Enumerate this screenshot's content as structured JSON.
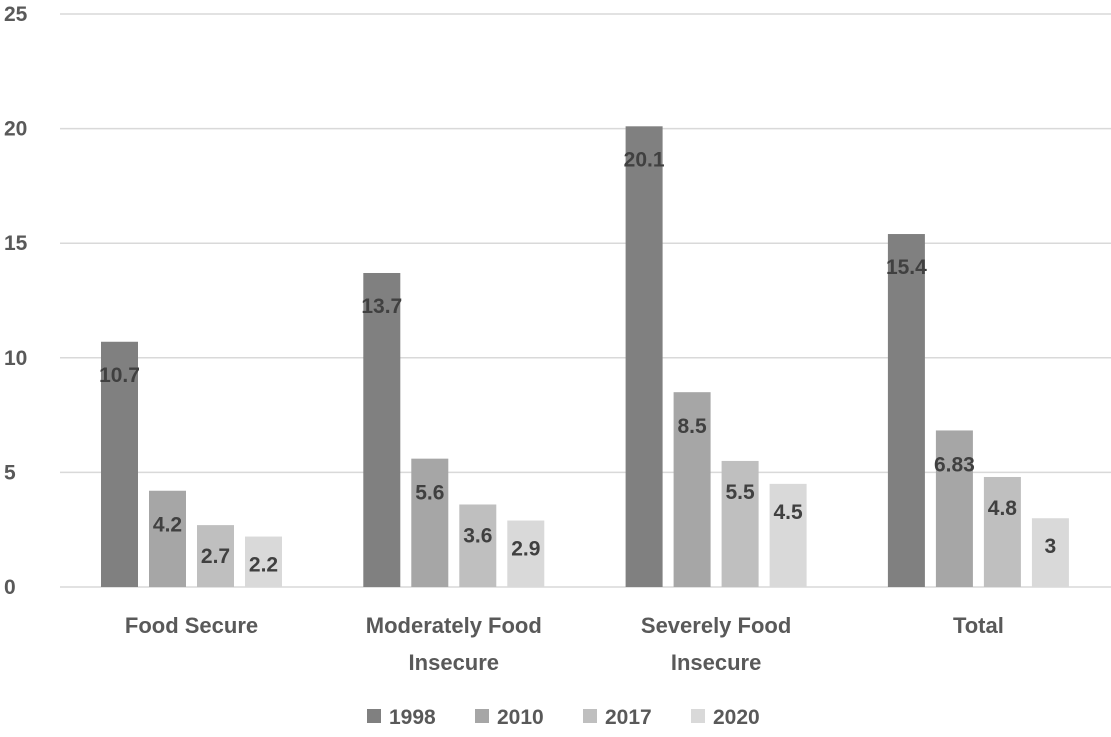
{
  "chart_data": {
    "type": "bar",
    "title": "",
    "xlabel": "",
    "ylabel": "",
    "ylim": [
      0,
      25
    ],
    "yticks": [
      0,
      5,
      10,
      15,
      20,
      25
    ],
    "grid": true,
    "legend_position": "bottom",
    "categories": [
      [
        "Food Secure"
      ],
      [
        "Moderately Food",
        "Insecure"
      ],
      [
        "Severely Food",
        "Insecure"
      ],
      [
        "Total"
      ]
    ],
    "series": [
      {
        "name": "1998",
        "color": "#808080",
        "values": [
          10.7,
          13.7,
          20.1,
          15.4
        ],
        "labels": [
          "10.7",
          "13.7",
          "20.1",
          "15.4"
        ]
      },
      {
        "name": "2010",
        "color": "#a6a6a6",
        "values": [
          4.2,
          5.6,
          8.5,
          6.83
        ],
        "labels": [
          "4.2",
          "5.6",
          "8.5",
          "6.83"
        ]
      },
      {
        "name": "2017",
        "color": "#bfbfbf",
        "values": [
          2.7,
          3.6,
          5.5,
          4.8
        ],
        "labels": [
          "2.7",
          "3.6",
          "5.5",
          "4.8"
        ]
      },
      {
        "name": "2020",
        "color": "#d9d9d9",
        "values": [
          2.2,
          2.9,
          4.5,
          3
        ],
        "labels": [
          "2.2",
          "2.9",
          "4.5",
          "3"
        ]
      }
    ]
  }
}
